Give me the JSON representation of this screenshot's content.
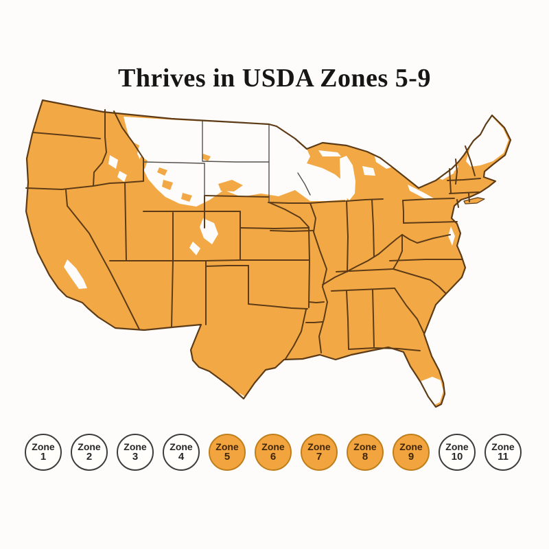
{
  "title": "Thrives in USDA Zones 5-9",
  "map": {
    "label": "USDA plant hardiness zone map of the continental United States",
    "thriving_color": "#F2A845",
    "non_thriving_color": "#FDFCFA",
    "border_color": "#5C3B16",
    "cold_border_color": "#55514B"
  },
  "legend": {
    "zone_word": "Zone",
    "active_fill": "#F2A43E",
    "active_ring": "#BE7E1C",
    "inactive_fill": "#FFFEFB",
    "inactive_ring": "#3C3C3C",
    "zones": [
      {
        "word": "Zone",
        "number": "1",
        "active": false
      },
      {
        "word": "Zone",
        "number": "2",
        "active": false
      },
      {
        "word": "Zone",
        "number": "3",
        "active": false
      },
      {
        "word": "Zone",
        "number": "4",
        "active": false
      },
      {
        "word": "Zone",
        "number": "5",
        "active": true
      },
      {
        "word": "Zone",
        "number": "6",
        "active": true
      },
      {
        "word": "Zone",
        "number": "7",
        "active": true
      },
      {
        "word": "Zone",
        "number": "8",
        "active": true
      },
      {
        "word": "Zone",
        "number": "9",
        "active": true
      },
      {
        "word": "Zone",
        "number": "10",
        "active": false
      },
      {
        "word": "Zone",
        "number": "11",
        "active": false
      }
    ]
  }
}
